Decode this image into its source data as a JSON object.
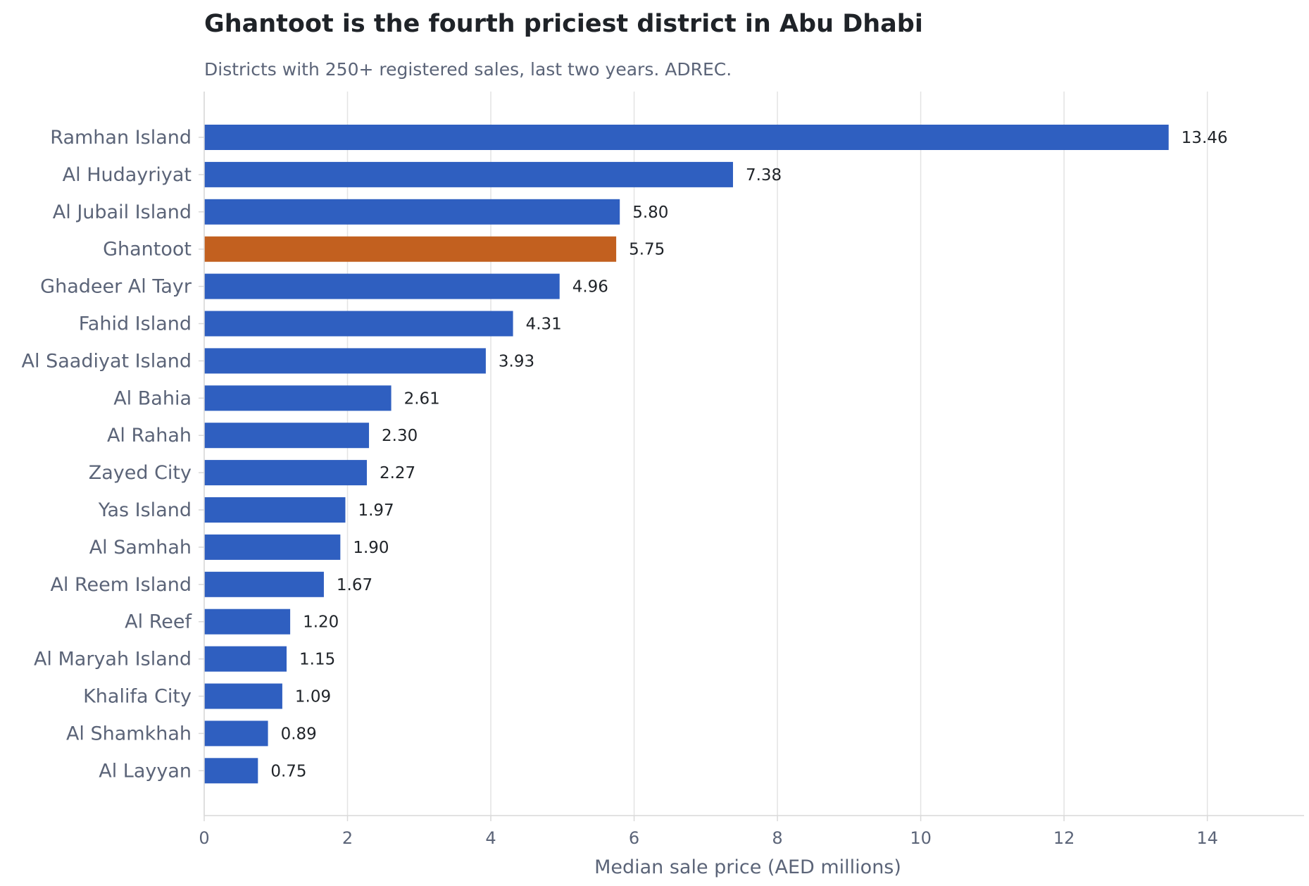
{
  "chart_data": {
    "type": "bar",
    "orientation": "horizontal",
    "title": "Ghantoot is the fourth priciest district in Abu Dhabi",
    "subtitle": "Districts with 250+ registered sales, last two years. ADREC.",
    "xlabel": "Median sale price (AED millions)",
    "ylabel": "",
    "xlim": [
      0,
      15.35
    ],
    "xticks": [
      0,
      2,
      4,
      6,
      8,
      10,
      12,
      14
    ],
    "grid": "vertical",
    "categories": [
      "Ramhan Island",
      "Al Hudayriyat",
      "Al Jubail Island",
      "Ghantoot",
      "Ghadeer Al Tayr",
      "Fahid Island",
      "Al Saadiyat Island",
      "Al Bahia",
      "Al Rahah",
      "Zayed City",
      "Yas Island",
      "Al Samhah",
      "Al Reem Island",
      "Al Reef",
      "Al Maryah Island",
      "Khalifa City",
      "Al Shamkhah",
      "Al Layyan"
    ],
    "values": [
      13.46,
      7.38,
      5.8,
      5.75,
      4.96,
      4.31,
      3.93,
      2.61,
      2.3,
      2.27,
      1.97,
      1.9,
      1.67,
      1.2,
      1.15,
      1.09,
      0.89,
      0.75
    ],
    "value_labels": [
      "13.46",
      "7.38",
      "5.80",
      "5.75",
      "4.96",
      "4.31",
      "3.93",
      "2.61",
      "2.30",
      "2.27",
      "1.97",
      "1.90",
      "1.67",
      "1.20",
      "1.15",
      "1.09",
      "0.89",
      "0.75"
    ],
    "highlight_category": "Ghantoot",
    "colors": {
      "bar": "#2f5fc0",
      "highlight": "#c2601f",
      "grid": "#e3e3e3",
      "axis": "#d9d9d9"
    }
  }
}
